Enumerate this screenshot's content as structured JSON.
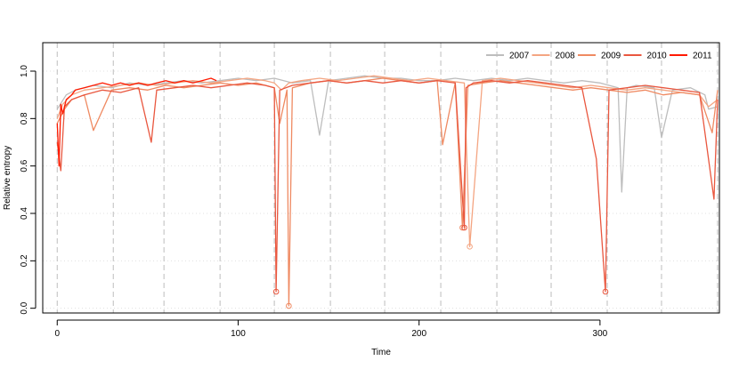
{
  "chart_data": {
    "type": "line",
    "title": "",
    "xlabel": "Time",
    "ylabel": "Relative entropy",
    "xlim": [
      -8,
      366
    ],
    "ylim": [
      -0.02,
      1.12
    ],
    "xticks": [
      0,
      100,
      200,
      300
    ],
    "yticks": [
      0.0,
      0.2,
      0.4,
      0.6,
      0.8,
      1.0
    ],
    "ytick_labels": [
      "0.0",
      "0.2",
      "0.4",
      "0.6",
      "0.8",
      "1.0"
    ],
    "month_boundaries": [
      0,
      31,
      59,
      90,
      120,
      151,
      181,
      212,
      243,
      273,
      304,
      334,
      365
    ],
    "grid": "dotted horizontal at y ticks, dashed vertical at month boundaries",
    "legend_position": "top-right",
    "series": [
      {
        "name": "2007",
        "color": "#bdbdbd",
        "x": [
          0,
          5,
          10,
          20,
          30,
          40,
          50,
          60,
          70,
          80,
          90,
          100,
          110,
          120,
          130,
          140,
          145,
          150,
          160,
          170,
          180,
          190,
          200,
          210,
          220,
          230,
          240,
          250,
          260,
          270,
          280,
          290,
          300,
          305,
          310,
          312,
          315,
          320,
          330,
          334,
          340,
          350,
          358,
          360,
          365
        ],
        "y": [
          0.84,
          0.9,
          0.92,
          0.94,
          0.93,
          0.95,
          0.94,
          0.95,
          0.96,
          0.95,
          0.96,
          0.97,
          0.96,
          0.97,
          0.95,
          0.96,
          0.73,
          0.96,
          0.97,
          0.98,
          0.97,
          0.97,
          0.96,
          0.96,
          0.97,
          0.96,
          0.97,
          0.96,
          0.97,
          0.96,
          0.95,
          0.96,
          0.95,
          0.94,
          0.93,
          0.49,
          0.93,
          0.94,
          0.93,
          0.72,
          0.92,
          0.93,
          0.9,
          0.84,
          0.85
        ],
        "markers": []
      },
      {
        "name": "2008",
        "color": "#f4a582",
        "x": [
          0,
          3,
          8,
          15,
          25,
          35,
          45,
          55,
          65,
          75,
          85,
          95,
          105,
          115,
          120,
          124,
          128,
          135,
          145,
          155,
          165,
          175,
          185,
          195,
          205,
          215,
          225,
          228,
          235,
          245,
          255,
          265,
          275,
          285,
          295,
          305,
          315,
          325,
          335,
          345,
          355,
          360,
          365
        ],
        "y": [
          0.8,
          0.86,
          0.9,
          0.92,
          0.93,
          0.94,
          0.95,
          0.94,
          0.95,
          0.96,
          0.95,
          0.96,
          0.97,
          0.96,
          0.95,
          0.92,
          0.95,
          0.96,
          0.97,
          0.96,
          0.97,
          0.98,
          0.97,
          0.96,
          0.97,
          0.96,
          0.95,
          0.26,
          0.96,
          0.97,
          0.96,
          0.95,
          0.94,
          0.93,
          0.94,
          0.93,
          0.92,
          0.93,
          0.92,
          0.91,
          0.9,
          0.85,
          0.88
        ],
        "markers": [
          [
            228,
            0.26
          ]
        ]
      },
      {
        "name": "2009",
        "color": "#ef8a62",
        "x": [
          0,
          4,
          8,
          15,
          20,
          30,
          40,
          50,
          60,
          70,
          80,
          90,
          100,
          110,
          120,
          123,
          127,
          128,
          130,
          140,
          150,
          160,
          170,
          180,
          190,
          200,
          210,
          213,
          220,
          224,
          227,
          235,
          245,
          255,
          265,
          275,
          285,
          295,
          305,
          315,
          325,
          335,
          345,
          355,
          362,
          365
        ],
        "y": [
          0.78,
          0.84,
          0.88,
          0.9,
          0.75,
          0.92,
          0.93,
          0.92,
          0.94,
          0.93,
          0.94,
          0.95,
          0.94,
          0.95,
          0.93,
          0.78,
          0.92,
          0.01,
          0.93,
          0.95,
          0.96,
          0.95,
          0.96,
          0.97,
          0.96,
          0.95,
          0.96,
          0.69,
          0.95,
          0.34,
          0.94,
          0.95,
          0.96,
          0.95,
          0.94,
          0.93,
          0.92,
          0.93,
          0.92,
          0.91,
          0.92,
          0.9,
          0.91,
          0.9,
          0.74,
          0.92
        ],
        "markers": [
          [
            128,
            0.01
          ],
          [
            224,
            0.34
          ]
        ]
      },
      {
        "name": "2010",
        "color": "#e9573f",
        "x": [
          0,
          2,
          4,
          8,
          15,
          25,
          35,
          45,
          52,
          55,
          65,
          75,
          85,
          95,
          105,
          115,
          120,
          121,
          123,
          130,
          140,
          150,
          160,
          170,
          180,
          190,
          200,
          210,
          220,
          225,
          226,
          230,
          240,
          250,
          260,
          270,
          280,
          290,
          298,
          303,
          305,
          315,
          325,
          335,
          345,
          355,
          363,
          365
        ],
        "y": [
          0.7,
          0.58,
          0.85,
          0.88,
          0.9,
          0.92,
          0.91,
          0.93,
          0.7,
          0.92,
          0.93,
          0.94,
          0.93,
          0.94,
          0.95,
          0.94,
          0.93,
          0.07,
          0.92,
          0.94,
          0.95,
          0.96,
          0.95,
          0.96,
          0.95,
          0.96,
          0.95,
          0.96,
          0.95,
          0.34,
          0.93,
          0.95,
          0.96,
          0.95,
          0.96,
          0.95,
          0.94,
          0.93,
          0.63,
          0.07,
          0.92,
          0.93,
          0.94,
          0.93,
          0.92,
          0.91,
          0.46,
          0.88
        ],
        "markers": [
          [
            121,
            0.07
          ],
          [
            225,
            0.34
          ],
          [
            303,
            0.07
          ]
        ]
      },
      {
        "name": "2011",
        "color": "#ff1a00",
        "x": [
          0,
          1,
          2,
          3,
          5,
          8,
          10,
          15,
          20,
          25,
          30,
          35,
          40,
          45,
          50,
          55,
          60,
          65,
          70,
          75,
          80,
          85,
          88
        ],
        "y": [
          0.78,
          0.6,
          0.86,
          0.82,
          0.88,
          0.9,
          0.92,
          0.93,
          0.94,
          0.95,
          0.94,
          0.95,
          0.94,
          0.95,
          0.94,
          0.95,
          0.96,
          0.95,
          0.96,
          0.95,
          0.96,
          0.97,
          0.96
        ],
        "markers": []
      }
    ]
  }
}
